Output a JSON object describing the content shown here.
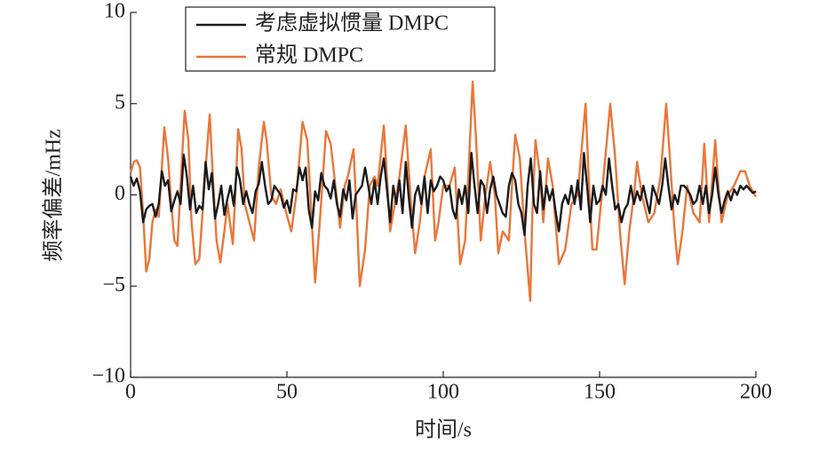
{
  "chart_data": {
    "type": "line",
    "xlabel": "时间/s",
    "ylabel": "频率偏差/mHz",
    "xlim": [
      0,
      200
    ],
    "ylim": [
      -10,
      10
    ],
    "xticks": [
      0,
      50,
      100,
      150,
      200
    ],
    "yticks": [
      {
        "value": -10,
        "label": "−10"
      },
      {
        "value": -5,
        "label": "−5"
      },
      0,
      5,
      10
    ],
    "legend": "upper left",
    "series": [
      {
        "name": "考虑虚拟惯量 DMPC",
        "color": "#1a1a1a",
        "x": [
          0,
          1,
          2,
          3,
          4,
          5,
          6,
          7,
          8,
          9,
          10,
          11,
          12,
          13,
          14,
          15,
          16,
          17,
          18,
          19,
          20,
          21,
          22,
          23,
          24,
          25,
          26,
          27,
          28,
          29,
          30,
          31,
          32,
          33,
          34,
          35,
          36,
          37,
          38,
          39,
          40,
          41,
          42,
          43,
          44,
          45,
          46,
          48,
          49,
          50,
          51,
          52,
          53,
          54,
          55,
          56,
          57,
          58,
          59,
          60,
          61,
          62,
          63,
          64,
          65,
          66,
          67,
          68,
          69,
          70,
          71,
          72,
          74,
          75,
          76,
          77,
          78,
          79,
          80,
          81,
          82,
          83,
          84,
          85,
          86,
          87,
          88,
          89,
          90,
          91,
          92,
          93,
          94,
          95,
          96,
          97,
          98,
          99,
          100,
          101,
          102,
          103,
          104,
          105,
          106,
          107,
          108,
          109,
          110,
          111,
          112,
          113,
          114,
          115,
          116,
          117,
          118,
          119,
          120,
          121,
          122,
          123,
          124,
          125,
          126,
          127,
          128,
          129,
          130,
          131,
          132,
          133,
          134,
          135,
          136,
          137,
          138,
          139,
          140,
          141,
          142,
          143,
          144,
          145,
          146,
          147,
          148,
          149,
          150,
          151,
          152,
          153,
          154,
          155,
          156,
          157,
          158,
          159,
          160,
          161,
          162,
          163,
          164,
          165,
          166,
          167,
          168,
          169,
          170,
          171,
          172,
          173,
          174,
          175,
          176,
          177,
          178,
          179,
          180,
          181,
          182,
          183,
          184,
          185,
          186,
          187,
          188,
          189,
          190,
          191,
          192,
          193,
          194,
          195,
          196,
          197,
          198,
          199,
          200
        ],
        "values": [
          1,
          0.5,
          0.9,
          0.2,
          -1.5,
          -0.8,
          -0.6,
          -0.5,
          -1.2,
          -0.5,
          1.3,
          0.5,
          0.8,
          -0.9,
          -0.3,
          0.2,
          -0.5,
          2.2,
          1,
          -0.8,
          0.5,
          -1,
          -0.6,
          -0.8,
          1.8,
          0.3,
          1.2,
          -1.3,
          -0.5,
          0.5,
          -1.1,
          -0.2,
          0.5,
          -0.6,
          1.5,
          0.8,
          -0.5,
          0.2,
          -0.5,
          -1,
          0.2,
          0.6,
          1.8,
          0.5,
          -0.5,
          -0.3,
          0.5,
          0,
          -0.7,
          -0.3,
          -1,
          0.3,
          0.2,
          1.5,
          0.8,
          1.5,
          -0.8,
          -1.8,
          0.2,
          -0.3,
          1.2,
          0.5,
          0.3,
          -0.2,
          0.8,
          -0.5,
          -1.2,
          0.3,
          -0.3,
          0.8,
          -1.3,
          0,
          0.5,
          1.5,
          0.5,
          -0.5,
          0.8,
          -0.5,
          1,
          2,
          0.3,
          -1.5,
          0.5,
          -0.5,
          0.8,
          -1,
          1.8,
          -0.2,
          -1.8,
          0,
          0.5,
          -0.5,
          1,
          -1,
          0.8,
          0.2,
          0.5,
          1,
          0.8,
          0.2,
          0.5,
          -0.8,
          -1.3,
          0.3,
          -0.5,
          0.5,
          -1,
          2.3,
          0.5,
          -1,
          0.8,
          0.5,
          -1,
          0.3,
          1,
          0,
          -0.5,
          -1,
          -1.2,
          0.5,
          1.2,
          0.8,
          -0.5,
          -1,
          -2.2,
          0.5,
          2,
          -0.5,
          -1,
          1.3,
          -0.8,
          0.5,
          -0.3,
          0.3,
          -1,
          -2,
          -0.5,
          0,
          -0.5,
          0.5,
          -0.5,
          0.8,
          -0.8,
          2.3,
          0.5,
          -1.5,
          0.5,
          -0.5,
          -0.3,
          0.5,
          0,
          2,
          0.5,
          -0.8,
          -0.5,
          -1.5,
          -0.8,
          -0.5,
          0.5,
          -0.5,
          0.2,
          -0.3,
          0.5,
          -0.3,
          -1,
          0.5,
          0,
          -0.5,
          0.5,
          2,
          0.5,
          -0.8,
          0,
          -0.5,
          0.5,
          0.5,
          0.3,
          0,
          -0.5,
          -0.3,
          0.5,
          -0.5,
          0.5,
          -1,
          0,
          1.5,
          0,
          -1,
          -0.3,
          0.2,
          -0.3,
          0.3,
          0,
          0.5,
          0.3,
          0.5,
          0.3,
          0.1,
          0.2
        ]
      },
      {
        "name": "常规 DMPC",
        "color": "#e8773a",
        "x": [
          0,
          1,
          2,
          3,
          4,
          5,
          6,
          7,
          8,
          9,
          10,
          10.8,
          12,
          13,
          14,
          15,
          16,
          17.3,
          18.5,
          19.5,
          20.7,
          22,
          23,
          24,
          25.3,
          26.3,
          27.5,
          28.7,
          30,
          31,
          32.7,
          33.5,
          34.4,
          35.5,
          36.5,
          38,
          39.5,
          41,
          42.6,
          43.5,
          45,
          46.5,
          48,
          49.5,
          51.4,
          53,
          55,
          56.5,
          57.5,
          59,
          60.5,
          62.5,
          64,
          65.5,
          67,
          68.5,
          69.5,
          71.3,
          72.3,
          73.3,
          75,
          76.5,
          78,
          79,
          81,
          82,
          83,
          84.5,
          86,
          88,
          89.5,
          91,
          92.5,
          94,
          96,
          97.4,
          98.5,
          100,
          102,
          103.7,
          105.4,
          107,
          108,
          109.4,
          110.5,
          112,
          113.5,
          115,
          116.5,
          117.6,
          119,
          121,
          122,
          123,
          124.5,
          126,
          127.8,
          128.5,
          129.5,
          131,
          132,
          133.5,
          135,
          137,
          139,
          141,
          143,
          145.5,
          146.5,
          147.7,
          149,
          151,
          153.4,
          155,
          156.5,
          158,
          159.5,
          161,
          162,
          163.5,
          165.6,
          167.5,
          169.5,
          171.3,
          172.5,
          174,
          175,
          176.5,
          178,
          180,
          182,
          183.5,
          185,
          187,
          188,
          189,
          191,
          193,
          195,
          196.5,
          198,
          200
        ],
        "values": [
          1.2,
          1.8,
          1.9,
          1.5,
          -1,
          -4.2,
          -3.5,
          -1.5,
          -0.8,
          -1.2,
          1.5,
          3.7,
          2,
          -0.5,
          -2.5,
          -2.8,
          0.5,
          4.6,
          3,
          -1.5,
          -3.8,
          -3.5,
          -1,
          1.5,
          4.4,
          1,
          -2.5,
          -3.7,
          -2,
          -0.5,
          -2.7,
          0,
          3.6,
          2.5,
          -0.5,
          -1.5,
          -2.5,
          1.5,
          4,
          3,
          0,
          -0.5,
          0.3,
          -0.8,
          -2,
          0,
          4,
          3,
          0,
          -4.8,
          -1.5,
          3.5,
          2.8,
          0.5,
          -1.8,
          0.5,
          1,
          2.5,
          -1,
          -5,
          -3,
          0.5,
          1,
          0.5,
          3.8,
          1,
          -2,
          -0.5,
          1,
          3.8,
          0,
          -3.2,
          -1.5,
          1,
          2.5,
          -2.5,
          -1.5,
          0.5,
          0.5,
          1.5,
          -3.8,
          -2.5,
          1,
          6.2,
          3,
          -2.5,
          0,
          1.8,
          0,
          -3.2,
          -2,
          -2.5,
          0.5,
          3.3,
          2,
          -2,
          -5.8,
          -1,
          3,
          1,
          -1.5,
          2,
          0.5,
          -3.8,
          -3,
          -0.5,
          0,
          5,
          1,
          -3,
          -3,
          0.5,
          5,
          2,
          -2,
          -4.9,
          -2,
          0,
          1.8,
          0,
          -1.5,
          -1,
          1,
          5,
          2,
          -2,
          -3.8,
          -2,
          0.5,
          -1,
          -1.5,
          2.8,
          -1.5,
          3,
          0.5,
          -1.5,
          0,
          0.5,
          1.3,
          1.3,
          0.5,
          -0.1
        ]
      }
    ]
  }
}
